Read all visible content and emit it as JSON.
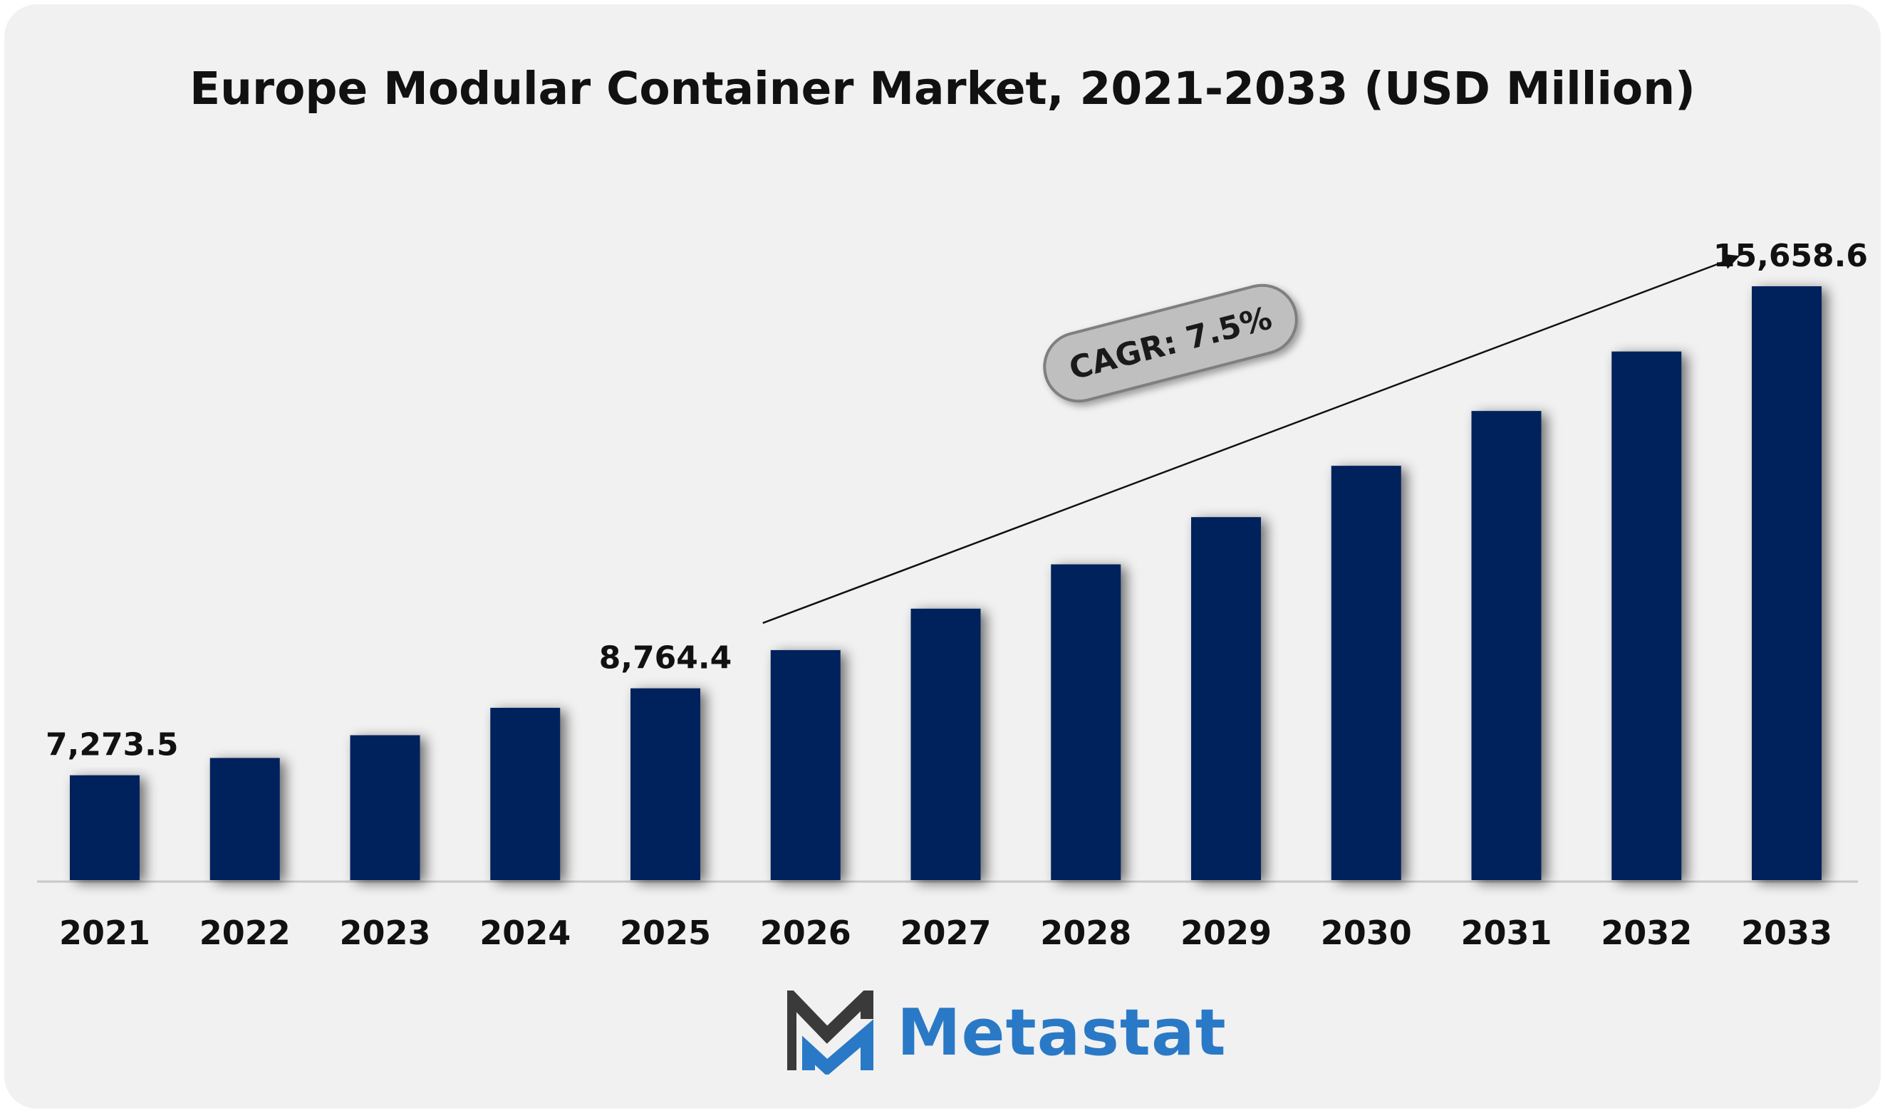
{
  "chart_data": {
    "type": "bar",
    "title": "Europe Modular Container Market, 2021-2033 (USD Million)",
    "categories": [
      "2021",
      "2022",
      "2023",
      "2024",
      "2025",
      "2026",
      "2027",
      "2028",
      "2029",
      "2030",
      "2031",
      "2032",
      "2033"
    ],
    "values": [
      7273.5,
      7570,
      7960,
      8430,
      8764.4,
      9420,
      10130,
      10890,
      11700,
      12580,
      13520,
      14540,
      15658.6
    ],
    "data_labels": [
      {
        "index": 0,
        "text": "7,273.5"
      },
      {
        "index": 4,
        "text": "8,764.4"
      },
      {
        "index": 12,
        "text": "15,658.6"
      }
    ],
    "annotation": {
      "text": "CAGR: 7.5%",
      "from_index": 5,
      "to_index": 12
    },
    "xlabel": "",
    "ylabel": "",
    "grid": false,
    "bar_color": "#03205c"
  },
  "brand": {
    "name": "Metastat",
    "color": "#2a79c6"
  }
}
